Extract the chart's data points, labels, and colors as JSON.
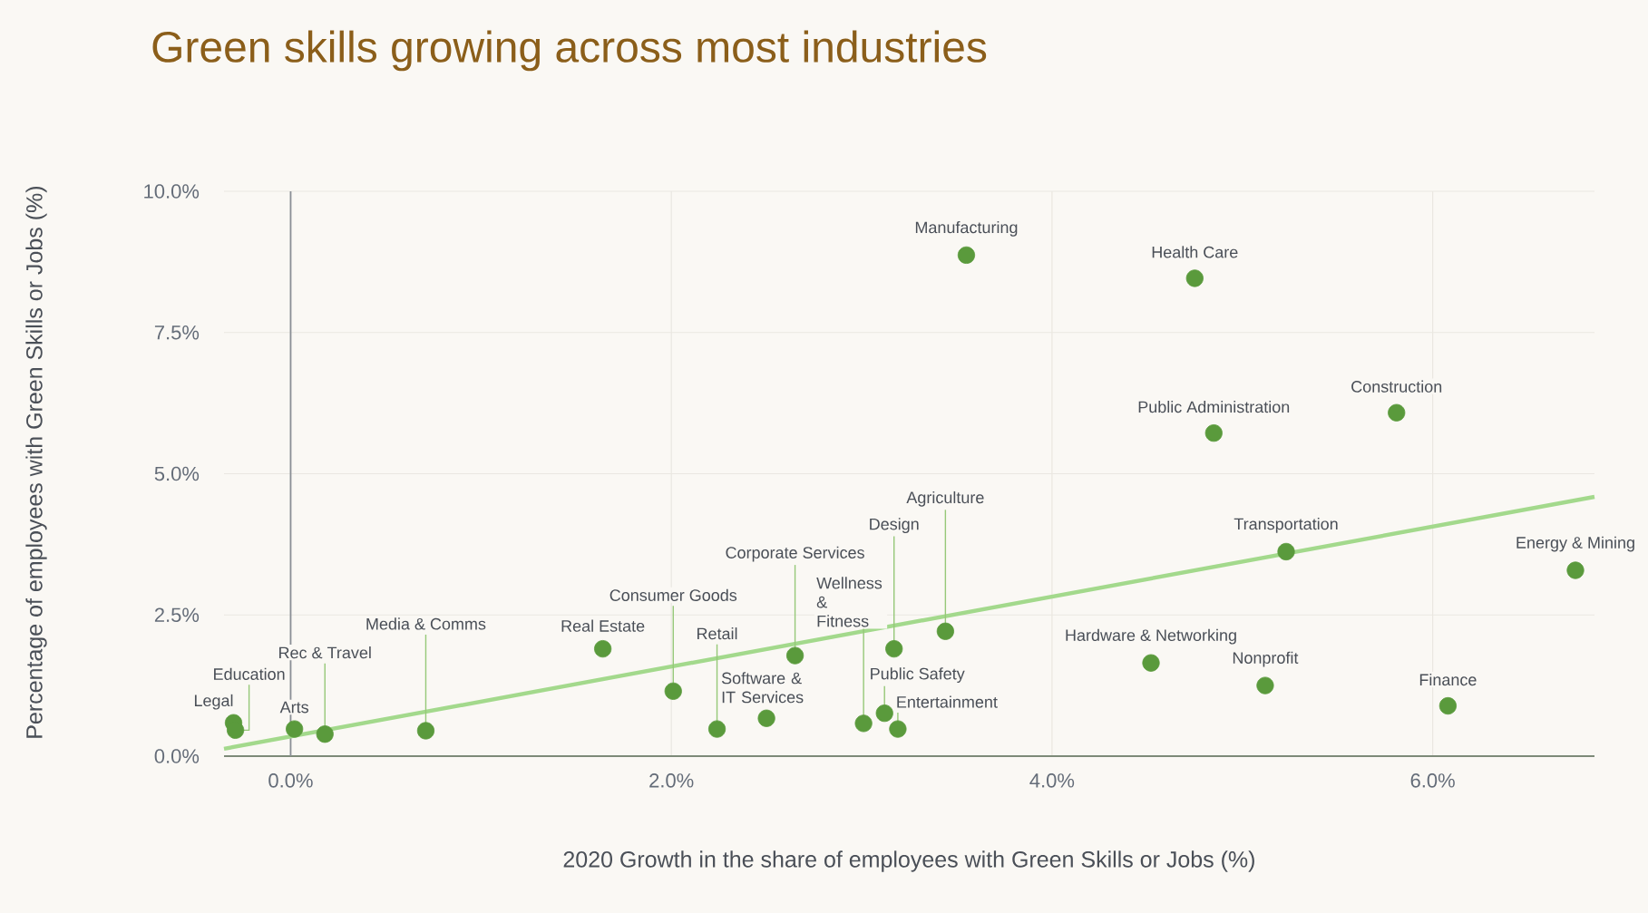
{
  "chart_data": {
    "type": "scatter",
    "title": "Green skills growing across most industries",
    "xlabel": "2020 Growth in the share of employees with Green Skills or Jobs (%)",
    "ylabel": "Percentage of employees with Green Skills or Jobs (%)",
    "xlim": [
      -0.35,
      6.85
    ],
    "ylim": [
      0,
      10
    ],
    "xticks": [
      {
        "value": 0,
        "label": "0.0%"
      },
      {
        "value": 2,
        "label": "2.0%"
      },
      {
        "value": 4,
        "label": "4.0%"
      },
      {
        "value": 6,
        "label": "6.0%"
      }
    ],
    "yticks": [
      {
        "value": 0,
        "label": "0.0%"
      },
      {
        "value": 2.5,
        "label": "2.5%"
      },
      {
        "value": 5,
        "label": "5.0%"
      },
      {
        "value": 7.5,
        "label": "7.5%"
      },
      {
        "value": 10,
        "label": "10.0%"
      }
    ],
    "grid": true,
    "ref_lines": [
      {
        "axis": "x",
        "value": 0,
        "color": "#8a8f96"
      }
    ],
    "series": [
      {
        "marker": "circle",
        "color": "#5a9a3c",
        "x": [
          -0.3,
          -0.29,
          0.02,
          0.18,
          0.71,
          1.64,
          2.01,
          2.24,
          2.5,
          2.65,
          3.01,
          3.12,
          3.19,
          3.17,
          3.44,
          3.55,
          4.75,
          4.85,
          5.81,
          5.23,
          6.75,
          4.52,
          5.12,
          6.08
        ],
        "values": [
          0.59,
          0.46,
          0.48,
          0.39,
          0.45,
          1.9,
          1.15,
          0.48,
          0.67,
          1.78,
          0.58,
          0.76,
          0.48,
          1.9,
          2.21,
          8.87,
          8.46,
          5.72,
          6.08,
          3.62,
          3.29,
          1.65,
          1.25,
          0.89
        ]
      },
      {
        "type": "line",
        "color": "#a3d98c",
        "x": [
          -0.35,
          6.85
        ],
        "values": [
          0.13,
          4.59
        ]
      }
    ],
    "annotations": [
      {
        "text": "Legal",
        "x": -0.3,
        "y": 0.59
      },
      {
        "text": "Education",
        "x": -0.29,
        "y": 0.46
      },
      {
        "text": "Arts",
        "x": 0.02,
        "y": 0.48
      },
      {
        "text": "Rec & Travel",
        "x": 0.18,
        "y": 0.39
      },
      {
        "text": "Media & Comms",
        "x": 0.71,
        "y": 0.45
      },
      {
        "text": "Real Estate",
        "x": 1.64,
        "y": 1.9
      },
      {
        "text": "Consumer Goods",
        "x": 2.01,
        "y": 1.15
      },
      {
        "text": "Retail",
        "x": 2.24,
        "y": 0.48
      },
      {
        "text": "Software & IT Services",
        "x": 2.5,
        "y": 0.67
      },
      {
        "text": "Corporate Services",
        "x": 2.65,
        "y": 1.78
      },
      {
        "text": "Wellness & Fitness",
        "x": 3.01,
        "y": 0.58
      },
      {
        "text": "Public Safety",
        "x": 3.12,
        "y": 0.76
      },
      {
        "text": "Entertainment",
        "x": 3.19,
        "y": 0.48
      },
      {
        "text": "Design",
        "x": 3.17,
        "y": 1.9
      },
      {
        "text": "Agriculture",
        "x": 3.44,
        "y": 2.21
      },
      {
        "text": "Manufacturing",
        "x": 3.55,
        "y": 8.87
      },
      {
        "text": "Health Care",
        "x": 4.75,
        "y": 8.46
      },
      {
        "text": "Public Administration",
        "x": 4.85,
        "y": 5.72
      },
      {
        "text": "Construction",
        "x": 5.81,
        "y": 6.08
      },
      {
        "text": "Transportation",
        "x": 5.23,
        "y": 3.62
      },
      {
        "text": "Energy & Mining",
        "x": 6.75,
        "y": 3.29
      },
      {
        "text": "Hardware & Networking",
        "x": 4.52,
        "y": 1.65
      },
      {
        "text": "Nonprofit",
        "x": 5.12,
        "y": 1.25
      },
      {
        "text": "Finance",
        "x": 6.08,
        "y": 0.89
      }
    ]
  }
}
